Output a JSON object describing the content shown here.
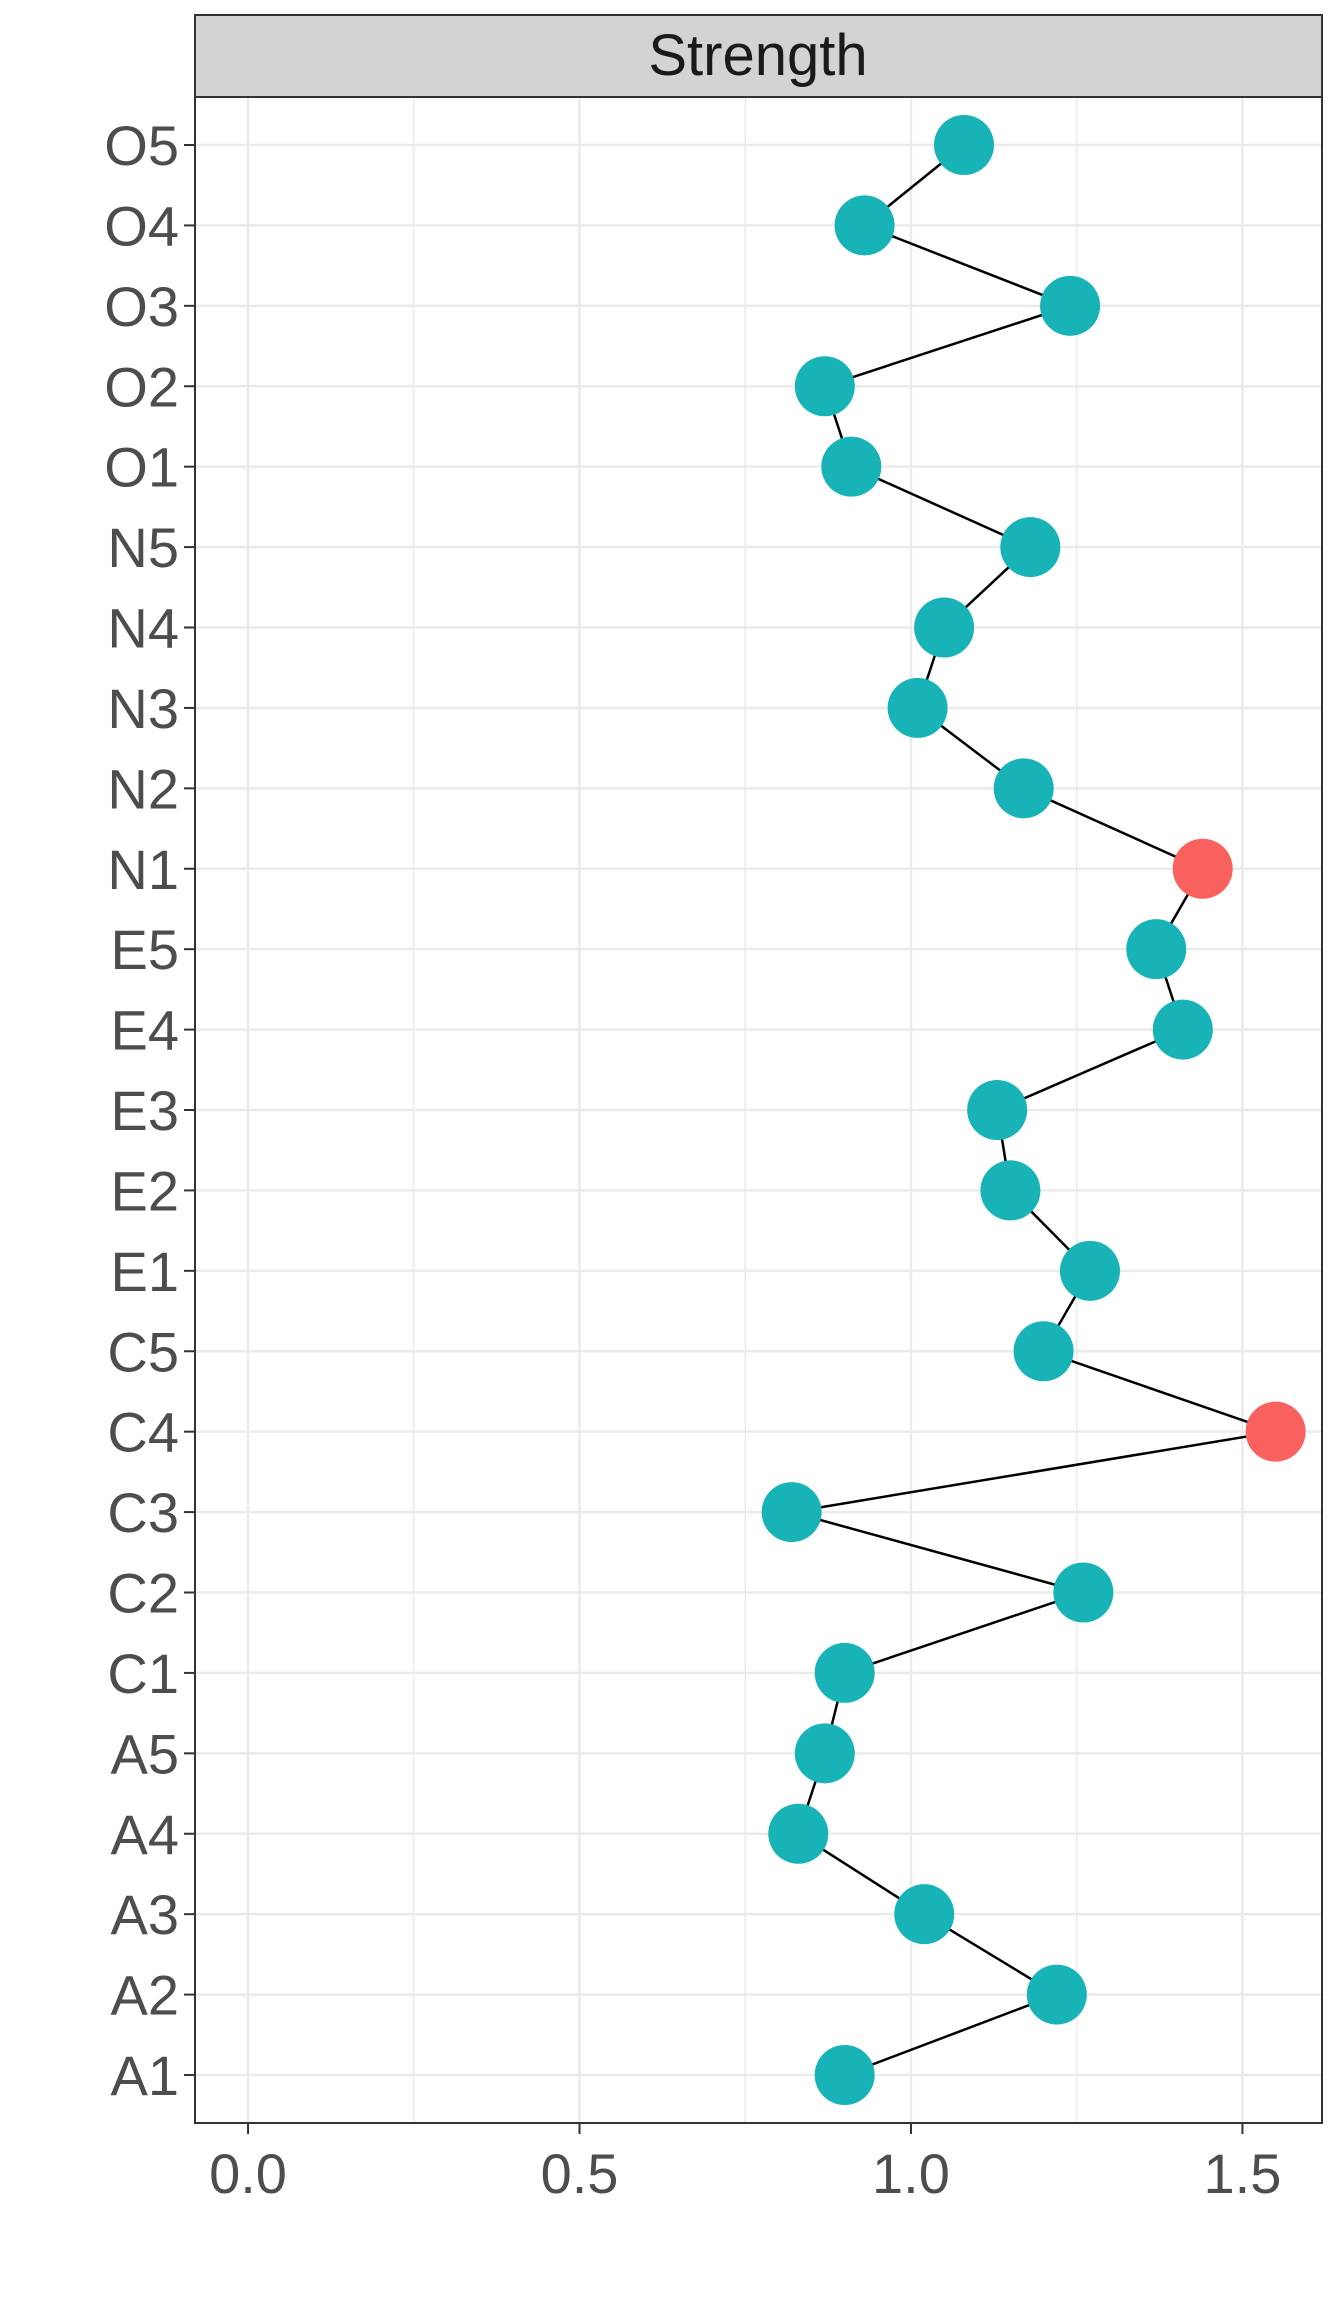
{
  "chart_data": {
    "type": "scatter",
    "facet_title": "Strength",
    "categories": [
      "A1",
      "A2",
      "A3",
      "A4",
      "A5",
      "C1",
      "C2",
      "C3",
      "C4",
      "C5",
      "E1",
      "E2",
      "E3",
      "E4",
      "E5",
      "N1",
      "N2",
      "N3",
      "N4",
      "N5",
      "O1",
      "O2",
      "O3",
      "O4",
      "O5"
    ],
    "values": [
      0.9,
      1.22,
      1.02,
      0.83,
      0.87,
      0.9,
      1.26,
      0.82,
      1.55,
      1.2,
      1.27,
      1.15,
      1.13,
      1.41,
      1.37,
      1.44,
      1.17,
      1.01,
      1.05,
      1.18,
      0.91,
      0.87,
      1.24,
      0.93,
      1.08
    ],
    "highlighted": [
      "C4",
      "N1"
    ],
    "xlim": [
      -0.08,
      1.62
    ],
    "xticks": [
      "0.0",
      "0.5",
      "1.0",
      "1.5"
    ],
    "xtick_values": [
      0,
      0.5,
      1.0,
      1.5
    ],
    "grid": true,
    "colors": {
      "normal": "#18B3B7",
      "highlight": "#F8615E",
      "line": "#000000",
      "grid": "#EBEBEB",
      "strip": "#D3D3D3",
      "border": "#333333"
    }
  }
}
